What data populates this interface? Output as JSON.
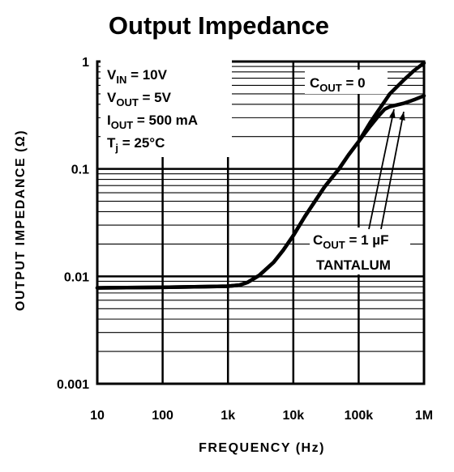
{
  "chart_data": {
    "type": "line",
    "title": "Output Impedance",
    "xlabel": "FREQUENCY (Hz)",
    "ylabel": "OUTPUT IMPEDANCE (Ω)",
    "xscale": "log",
    "yscale": "log",
    "xlim": [
      10,
      1000000
    ],
    "ylim": [
      0.001,
      1
    ],
    "x_ticks": [
      {
        "value": 10,
        "label": "10"
      },
      {
        "value": 100,
        "label": "100"
      },
      {
        "value": 1000,
        "label": "1k"
      },
      {
        "value": 10000,
        "label": "10k"
      },
      {
        "value": 100000,
        "label": "100k"
      },
      {
        "value": 1000000,
        "label": "1M"
      }
    ],
    "y_ticks": [
      {
        "value": 1,
        "label": "1"
      },
      {
        "value": 0.1,
        "label": "0.1"
      },
      {
        "value": 0.01,
        "label": "0.01"
      },
      {
        "value": 0.001,
        "label": "0.001"
      }
    ],
    "grid": true,
    "conditions": [
      {
        "sym": "V",
        "sub": "IN",
        "text": " = 10V"
      },
      {
        "sym": "V",
        "sub": "OUT",
        "text": " = 5V"
      },
      {
        "sym": "I",
        "sub": "OUT",
        "text": " = 500 mA"
      },
      {
        "sym": "T",
        "sub": "j",
        "text": " = 25°C"
      }
    ],
    "series": [
      {
        "name": "COUT = 0",
        "label_sym": "C",
        "label_sub": "OUT",
        "label_text": " = 0",
        "points": [
          [
            10,
            0.0078
          ],
          [
            100,
            0.0079
          ],
          [
            1000,
            0.0081
          ],
          [
            1500,
            0.0083
          ],
          [
            2000,
            0.0088
          ],
          [
            3000,
            0.0102
          ],
          [
            5000,
            0.0135
          ],
          [
            7000,
            0.0175
          ],
          [
            10000,
            0.024
          ],
          [
            15000,
            0.036
          ],
          [
            20000,
            0.047
          ],
          [
            30000,
            0.068
          ],
          [
            50000,
            0.1
          ],
          [
            70000,
            0.135
          ],
          [
            100000,
            0.18
          ],
          [
            150000,
            0.27
          ],
          [
            200000,
            0.35
          ],
          [
            300000,
            0.5
          ],
          [
            500000,
            0.68
          ],
          [
            700000,
            0.82
          ],
          [
            1000000,
            0.97
          ]
        ]
      },
      {
        "name": "COUT = 1 µF TANTALUM",
        "label_sym": "C",
        "label_sub": "OUT",
        "label_text": " = 1 µF",
        "label_line2": "TANTALUM",
        "points": [
          [
            10,
            0.0078
          ],
          [
            100,
            0.0079
          ],
          [
            1000,
            0.0081
          ],
          [
            1500,
            0.0083
          ],
          [
            2000,
            0.0088
          ],
          [
            3000,
            0.0102
          ],
          [
            5000,
            0.0135
          ],
          [
            7000,
            0.0175
          ],
          [
            10000,
            0.024
          ],
          [
            15000,
            0.036
          ],
          [
            20000,
            0.047
          ],
          [
            30000,
            0.068
          ],
          [
            50000,
            0.1
          ],
          [
            70000,
            0.135
          ],
          [
            100000,
            0.18
          ],
          [
            150000,
            0.25
          ],
          [
            200000,
            0.31
          ],
          [
            250000,
            0.36
          ],
          [
            300000,
            0.38
          ],
          [
            500000,
            0.41
          ],
          [
            700000,
            0.44
          ],
          [
            1000000,
            0.48
          ]
        ]
      }
    ],
    "colors": {
      "line": "#000000",
      "grid": "#000000",
      "background": "#ffffff"
    }
  }
}
